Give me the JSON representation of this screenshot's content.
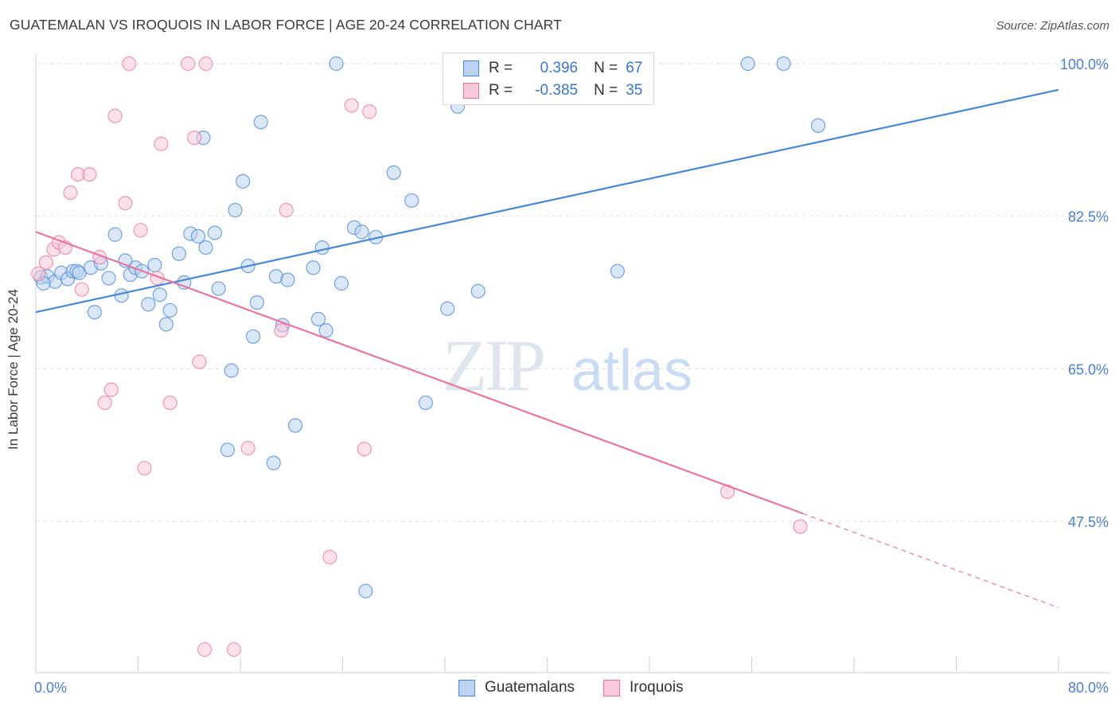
{
  "header": {
    "title": "GUATEMALAN VS IROQUOIS IN LABOR FORCE | AGE 20-24 CORRELATION CHART",
    "source": "Source: ZipAtlas.com"
  },
  "colors": {
    "blue": "#4a86d8",
    "blue_fill": "#bcd3f3",
    "pink": "#e8779f",
    "pink_fill": "#f8c9d8",
    "tick_text": "#4a7fd0"
  },
  "legend": {
    "rows": [
      {
        "r_label": "R =",
        "r_value": "0.396",
        "n_label": "N =",
        "n_value": "67"
      },
      {
        "r_label": "R =",
        "r_value": "-0.385",
        "n_label": "N =",
        "n_value": "35"
      }
    ],
    "bottom": [
      "Guatemalans",
      "Iroquois"
    ]
  },
  "watermark": {
    "zip": "ZIP",
    "atlas": "atlas"
  },
  "chart_data": {
    "type": "scatter",
    "title": "GUATEMALAN VS IROQUOIS IN LABOR FORCE | AGE 20-24 CORRELATION CHART",
    "ylabel": "In Labor Force | Age 20-24",
    "xlabel": "",
    "xlim": [
      0,
      80
    ],
    "ylim": [
      30,
      101
    ],
    "x_tick_labels": [
      "0.0%",
      "80.0%"
    ],
    "y_ticks": [
      47.5,
      65.0,
      82.5,
      100.0
    ],
    "y_tick_labels": [
      "47.5%",
      "65.0%",
      "82.5%",
      "100.0%"
    ],
    "grid": true,
    "legend_position": "top-center",
    "series": [
      {
        "name": "Guatemalans",
        "color": "#4a86d8",
        "r": 0.396,
        "n": 67,
        "trend": {
          "x": [
            0,
            80
          ],
          "y": [
            71.5,
            97.0
          ],
          "style": "solid"
        },
        "points": [
          [
            0.4,
            75.5
          ],
          [
            0.9,
            75.6
          ],
          [
            1.5,
            75.0
          ],
          [
            2.0,
            76.0
          ],
          [
            2.5,
            75.3
          ],
          [
            2.9,
            76.2
          ],
          [
            3.2,
            76.2
          ],
          [
            3.4,
            76.0
          ],
          [
            4.3,
            76.6
          ],
          [
            4.6,
            71.5
          ],
          [
            5.1,
            77.1
          ],
          [
            5.7,
            75.4
          ],
          [
            6.2,
            80.4
          ],
          [
            6.7,
            73.4
          ],
          [
            7.0,
            77.4
          ],
          [
            7.4,
            75.8
          ],
          [
            7.8,
            76.6
          ],
          [
            8.3,
            76.2
          ],
          [
            8.8,
            72.4
          ],
          [
            9.3,
            76.9
          ],
          [
            9.7,
            73.5
          ],
          [
            10.2,
            70.1
          ],
          [
            10.5,
            71.7
          ],
          [
            11.2,
            78.2
          ],
          [
            11.6,
            74.9
          ],
          [
            12.1,
            80.5
          ],
          [
            12.7,
            80.2
          ],
          [
            13.1,
            91.5
          ],
          [
            13.3,
            78.9
          ],
          [
            14.0,
            80.6
          ],
          [
            14.3,
            74.2
          ],
          [
            15.3,
            64.8
          ],
          [
            15.6,
            83.2
          ],
          [
            16.2,
            86.5
          ],
          [
            16.6,
            76.8
          ],
          [
            17.0,
            68.7
          ],
          [
            17.3,
            72.6
          ],
          [
            17.6,
            93.3
          ],
          [
            18.6,
            54.2
          ],
          [
            18.8,
            75.6
          ],
          [
            19.3,
            70.0
          ],
          [
            19.7,
            75.2
          ],
          [
            20.3,
            58.5
          ],
          [
            21.7,
            76.6
          ],
          [
            22.1,
            70.7
          ],
          [
            22.4,
            78.9
          ],
          [
            22.7,
            69.4
          ],
          [
            23.5,
            100.0
          ],
          [
            23.9,
            74.8
          ],
          [
            24.9,
            81.2
          ],
          [
            25.5,
            80.7
          ],
          [
            25.8,
            39.5
          ],
          [
            26.6,
            80.1
          ],
          [
            28.0,
            87.5
          ],
          [
            29.4,
            84.3
          ],
          [
            30.5,
            61.1
          ],
          [
            32.2,
            71.9
          ],
          [
            33.0,
            95.1
          ],
          [
            34.6,
            73.9
          ],
          [
            36.3,
            100.0
          ],
          [
            43.6,
            100.0
          ],
          [
            45.5,
            76.2
          ],
          [
            55.7,
            100.0
          ],
          [
            58.5,
            100.0
          ],
          [
            61.2,
            92.9
          ],
          [
            15.0,
            55.7
          ],
          [
            0.6,
            74.8
          ]
        ]
      },
      {
        "name": "Iroquois",
        "color": "#e8779f",
        "r": -0.385,
        "n": 35,
        "trend": {
          "x": [
            0,
            60
          ],
          "y": [
            80.7,
            48.4
          ],
          "style": "solid",
          "dashed_to": {
            "x": 80,
            "y": 37.6
          }
        },
        "points": [
          [
            0.2,
            75.9
          ],
          [
            0.8,
            77.2
          ],
          [
            1.4,
            78.7
          ],
          [
            1.8,
            79.5
          ],
          [
            2.3,
            78.9
          ],
          [
            2.7,
            85.2
          ],
          [
            3.3,
            87.3
          ],
          [
            3.6,
            74.1
          ],
          [
            4.2,
            87.3
          ],
          [
            5.0,
            77.8
          ],
          [
            5.4,
            61.1
          ],
          [
            5.9,
            62.6
          ],
          [
            6.2,
            94.0
          ],
          [
            7.0,
            84.0
          ],
          [
            7.3,
            100.0
          ],
          [
            8.2,
            80.9
          ],
          [
            8.5,
            53.6
          ],
          [
            9.5,
            75.4
          ],
          [
            9.8,
            90.8
          ],
          [
            10.5,
            61.1
          ],
          [
            11.9,
            100.0
          ],
          [
            12.4,
            91.5
          ],
          [
            12.8,
            65.8
          ],
          [
            13.2,
            32.8
          ],
          [
            13.3,
            100.0
          ],
          [
            15.5,
            32.8
          ],
          [
            16.6,
            55.9
          ],
          [
            19.2,
            69.4
          ],
          [
            19.6,
            83.2
          ],
          [
            23.0,
            43.4
          ],
          [
            24.7,
            95.2
          ],
          [
            25.7,
            55.8
          ],
          [
            26.1,
            94.5
          ],
          [
            54.1,
            50.9
          ],
          [
            59.8,
            46.9
          ]
        ]
      }
    ]
  }
}
